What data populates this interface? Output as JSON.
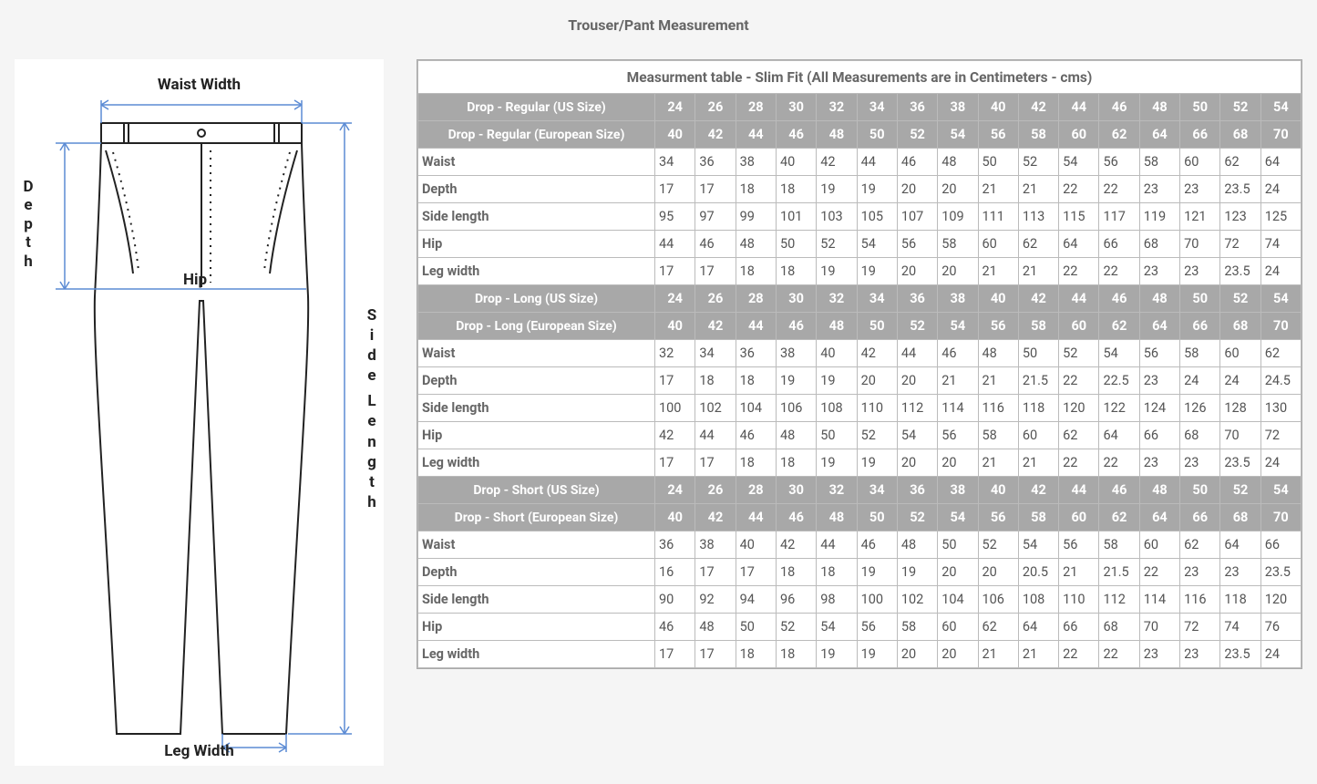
{
  "title": "Trouser/Pant Measurement",
  "diagram": {
    "labels": {
      "waist": "Waist Width",
      "depth": "Depth",
      "hip": "Hip",
      "side": "Side Length",
      "leg": "Leg Width"
    },
    "stroke_color": "#5b8bd4",
    "outline_color": "#222222"
  },
  "table": {
    "caption": "Measurment table - Slim Fit (All Measurements are in Centimeters - cms)",
    "col_count": 16,
    "sections": [
      {
        "headers": [
          {
            "label": "Drop - Regular (US Size)",
            "values": [
              "24",
              "26",
              "28",
              "30",
              "32",
              "34",
              "36",
              "38",
              "40",
              "42",
              "44",
              "46",
              "48",
              "50",
              "52",
              "54"
            ]
          },
          {
            "label": "Drop - Regular (European Size)",
            "values": [
              "40",
              "42",
              "44",
              "46",
              "48",
              "50",
              "52",
              "54",
              "56",
              "58",
              "60",
              "62",
              "64",
              "66",
              "68",
              "70"
            ]
          }
        ],
        "rows": [
          {
            "label": "Waist",
            "values": [
              "34",
              "36",
              "38",
              "40",
              "42",
              "44",
              "46",
              "48",
              "50",
              "52",
              "54",
              "56",
              "58",
              "60",
              "62",
              "64"
            ]
          },
          {
            "label": "Depth",
            "values": [
              "17",
              "17",
              "18",
              "18",
              "19",
              "19",
              "20",
              "20",
              "21",
              "21",
              "22",
              "22",
              "23",
              "23",
              "23.5",
              "24"
            ]
          },
          {
            "label": "Side length",
            "values": [
              "95",
              "97",
              "99",
              "101",
              "103",
              "105",
              "107",
              "109",
              "111",
              "113",
              "115",
              "117",
              "119",
              "121",
              "123",
              "125"
            ]
          },
          {
            "label": "Hip",
            "values": [
              "44",
              "46",
              "48",
              "50",
              "52",
              "54",
              "56",
              "58",
              "60",
              "62",
              "64",
              "66",
              "68",
              "70",
              "72",
              "74"
            ]
          },
          {
            "label": "Leg width",
            "values": [
              "17",
              "17",
              "18",
              "18",
              "19",
              "19",
              "20",
              "20",
              "21",
              "21",
              "22",
              "22",
              "23",
              "23",
              "23.5",
              "24"
            ]
          }
        ]
      },
      {
        "headers": [
          {
            "label": "Drop - Long (US Size)",
            "values": [
              "24",
              "26",
              "28",
              "30",
              "32",
              "34",
              "36",
              "38",
              "40",
              "42",
              "44",
              "46",
              "48",
              "50",
              "52",
              "54"
            ]
          },
          {
            "label": "Drop - Long (European Size)",
            "values": [
              "40",
              "42",
              "44",
              "46",
              "48",
              "50",
              "52",
              "54",
              "56",
              "58",
              "60",
              "62",
              "64",
              "66",
              "68",
              "70"
            ]
          }
        ],
        "rows": [
          {
            "label": "Waist",
            "values": [
              "32",
              "34",
              "36",
              "38",
              "40",
              "42",
              "44",
              "46",
              "48",
              "50",
              "52",
              "54",
              "56",
              "58",
              "60",
              "62"
            ]
          },
          {
            "label": "Depth",
            "values": [
              "17",
              "18",
              "18",
              "19",
              "19",
              "20",
              "20",
              "21",
              "21",
              "21.5",
              "22",
              "22.5",
              "23",
              "24",
              "24",
              "24.5"
            ]
          },
          {
            "label": "Side length",
            "values": [
              "100",
              "102",
              "104",
              "106",
              "108",
              "110",
              "112",
              "114",
              "116",
              "118",
              "120",
              "122",
              "124",
              "126",
              "128",
              "130"
            ]
          },
          {
            "label": "Hip",
            "values": [
              "42",
              "44",
              "46",
              "48",
              "50",
              "52",
              "54",
              "56",
              "58",
              "60",
              "62",
              "64",
              "66",
              "68",
              "70",
              "72"
            ]
          },
          {
            "label": "Leg width",
            "values": [
              "17",
              "17",
              "18",
              "18",
              "19",
              "19",
              "20",
              "20",
              "21",
              "21",
              "22",
              "22",
              "23",
              "23",
              "23.5",
              "24"
            ]
          }
        ]
      },
      {
        "headers": [
          {
            "label": "Drop - Short (US Size)",
            "values": [
              "24",
              "26",
              "28",
              "30",
              "32",
              "34",
              "36",
              "38",
              "40",
              "42",
              "44",
              "46",
              "48",
              "50",
              "52",
              "54"
            ]
          },
          {
            "label": "Drop - Short (European Size)",
            "values": [
              "40",
              "42",
              "44",
              "46",
              "48",
              "50",
              "52",
              "54",
              "56",
              "58",
              "60",
              "62",
              "64",
              "66",
              "68",
              "70"
            ]
          }
        ],
        "rows": [
          {
            "label": "Waist",
            "values": [
              "36",
              "38",
              "40",
              "42",
              "44",
              "46",
              "48",
              "50",
              "52",
              "54",
              "56",
              "58",
              "60",
              "62",
              "64",
              "66"
            ]
          },
          {
            "label": "Depth",
            "values": [
              "16",
              "17",
              "17",
              "18",
              "18",
              "19",
              "19",
              "20",
              "20",
              "20.5",
              "21",
              "21.5",
              "22",
              "23",
              "23",
              "23.5"
            ]
          },
          {
            "label": "Side length",
            "values": [
              "90",
              "92",
              "94",
              "96",
              "98",
              "100",
              "102",
              "104",
              "106",
              "108",
              "110",
              "112",
              "114",
              "116",
              "118",
              "120"
            ]
          },
          {
            "label": "Hip",
            "values": [
              "46",
              "48",
              "50",
              "52",
              "54",
              "56",
              "58",
              "60",
              "62",
              "64",
              "66",
              "68",
              "70",
              "72",
              "74",
              "76"
            ]
          },
          {
            "label": "Leg width",
            "values": [
              "17",
              "17",
              "18",
              "18",
              "19",
              "19",
              "20",
              "20",
              "21",
              "21",
              "22",
              "22",
              "23",
              "23",
              "23.5",
              "24"
            ]
          }
        ]
      }
    ]
  }
}
